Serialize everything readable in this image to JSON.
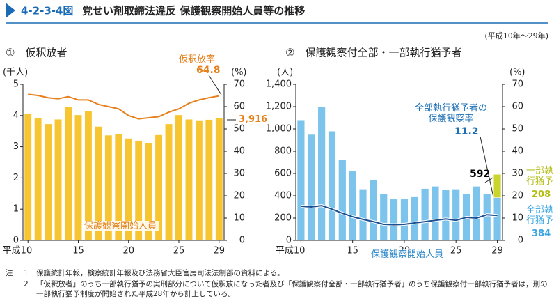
{
  "header": {
    "figure_no": "4-2-3-4図",
    "title": "覚せい剤取締法違反 保護観察開始人員等の推移",
    "period": "(平成10年～29年)"
  },
  "chart_data": [
    {
      "type": "bar_line",
      "title": "①　仮釈放者",
      "y_label": "(千人)",
      "y2_label": "(%)",
      "categories": [
        "平成10",
        null,
        null,
        null,
        null,
        "15",
        null,
        null,
        null,
        null,
        "20",
        null,
        null,
        null,
        null,
        "25",
        null,
        null,
        null,
        "29"
      ],
      "series": [
        {
          "name": "保護観察開始人員",
          "color": "#f7c531",
          "values": [
            4.05,
            3.92,
            3.73,
            3.88,
            4.28,
            4.02,
            4.15,
            3.65,
            3.37,
            3.42,
            3.27,
            3.2,
            3.13,
            3.38,
            3.73,
            4.02,
            3.88,
            3.85,
            3.87,
            3.916
          ],
          "value_labels": [
            null,
            null,
            null,
            null,
            null,
            null,
            null,
            null,
            null,
            null,
            null,
            null,
            null,
            null,
            null,
            null,
            null,
            null,
            null,
            "3,916"
          ]
        },
        {
          "name": "仮釈放率",
          "type": "line",
          "axis": "y2",
          "color": "#e5801c",
          "values": [
            65.5,
            65,
            64,
            63.5,
            64.5,
            63,
            63,
            61,
            60,
            59,
            56,
            54.5,
            55,
            55.5,
            57.5,
            59,
            61.5,
            63,
            64,
            64.8
          ]
        }
      ],
      "ylim": [
        0,
        5
      ],
      "yticks": [
        0,
        1,
        2,
        3,
        4,
        5
      ],
      "y2lim": [
        0,
        70
      ],
      "y2ticks": [
        0,
        10,
        20,
        30,
        40,
        50,
        60,
        70
      ]
    },
    {
      "type": "bar_line",
      "title": "②　保護観察付全部・一部執行猶予者",
      "y_label": "(人)",
      "y2_label": "(%)",
      "categories": [
        "平成10",
        null,
        null,
        null,
        null,
        "15",
        null,
        null,
        null,
        null,
        "20",
        null,
        null,
        null,
        null,
        "25",
        null,
        null,
        null,
        "29"
      ],
      "series": [
        {
          "name": "保護観察開始人員",
          "label": "全部執行猶予",
          "color": "#7cc4ec",
          "values": [
            1080,
            950,
            1195,
            980,
            725,
            620,
            460,
            545,
            420,
            370,
            370,
            390,
            465,
            485,
            455,
            460,
            420,
            485,
            420,
            384
          ]
        },
        {
          "name": "一部執行猶予",
          "color": "#c9d52c",
          "values": [
            null,
            null,
            null,
            null,
            null,
            null,
            null,
            null,
            null,
            null,
            null,
            null,
            null,
            null,
            null,
            null,
            null,
            null,
            null,
            208
          ]
        },
        {
          "name": "全部執行猶予者の保護観察率",
          "type": "line",
          "axis": "y2",
          "color": "#1d4f91",
          "values": [
            15.3,
            15,
            15.6,
            14,
            12.2,
            10.6,
            9.4,
            8.4,
            7.2,
            7,
            7.2,
            7.8,
            8.4,
            9,
            9.6,
            9,
            10.3,
            10,
            11.5,
            11.2
          ]
        }
      ],
      "total_last": 592,
      "ylim": [
        0,
        1400
      ],
      "yticks": [
        0,
        200,
        400,
        600,
        800,
        {
          "value": 1000,
          "label": "1,000"
        },
        {
          "value": 1200,
          "label": "1,200"
        },
        {
          "value": 1400,
          "label": "1,400"
        }
      ],
      "y2lim": [
        0,
        70
      ],
      "y2ticks": [
        0,
        10,
        20,
        30,
        40,
        50,
        60,
        70
      ]
    }
  ],
  "notes": {
    "lead": "注",
    "items": [
      {
        "no": "1",
        "text": "保護統計年報，検察統計年報及び法務省大臣官房司法法制部の資料による。"
      },
      {
        "no": "2",
        "text": "「仮釈放者」のうち一部執行猶予の実刑部分について仮釈放になった者及び「保護観察付全部・一部執行猶予者」のうち保護観察付一部執行猶予者は，刑の一部執行猶予制度が開始された平成28年から計上している。"
      }
    ]
  }
}
